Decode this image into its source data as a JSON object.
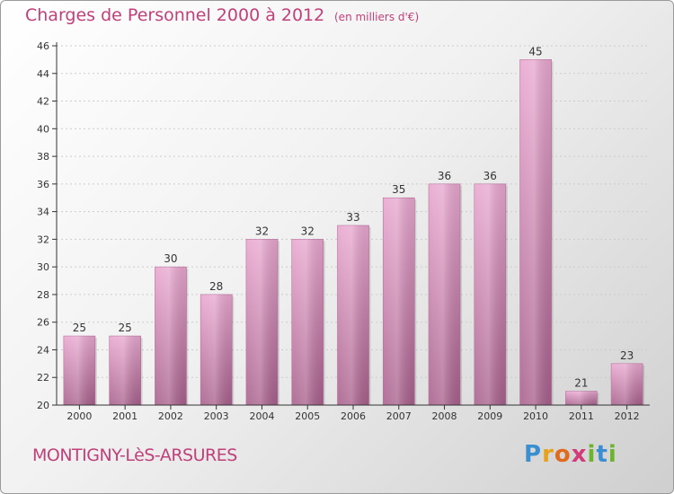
{
  "title": "Charges de Personnel 2000 à 2012",
  "subtitle": "(en milliers d'€)",
  "commune": "MONTIGNY-LèS-ARSURES",
  "logo": {
    "letters": [
      "P",
      "r",
      "o",
      "x",
      "i",
      "t",
      "i"
    ],
    "colors": [
      "#3a8fd0",
      "#e8a21a",
      "#e06a1e",
      "#d23a7a",
      "#6ab42e",
      "#3a8fd0",
      "#6ab42e"
    ]
  },
  "colors": {
    "accent": "#c0407a",
    "bar_top": "#e9a8d0",
    "bar_bottom": "#a8608c",
    "axis": "#333333",
    "grid": "#cccccc"
  },
  "chart_data": {
    "type": "bar",
    "categories": [
      "2000",
      "2001",
      "2002",
      "2003",
      "2004",
      "2005",
      "2006",
      "2007",
      "2008",
      "2009",
      "2010",
      "2011",
      "2012"
    ],
    "values": [
      25,
      25,
      30,
      28,
      32,
      32,
      33,
      35,
      36,
      36,
      45,
      21,
      23
    ],
    "ylim": [
      20,
      46
    ],
    "yticks": [
      20,
      22,
      24,
      26,
      28,
      30,
      32,
      34,
      36,
      38,
      40,
      42,
      44,
      46
    ],
    "grid": true,
    "xlabel": "",
    "ylabel": ""
  }
}
